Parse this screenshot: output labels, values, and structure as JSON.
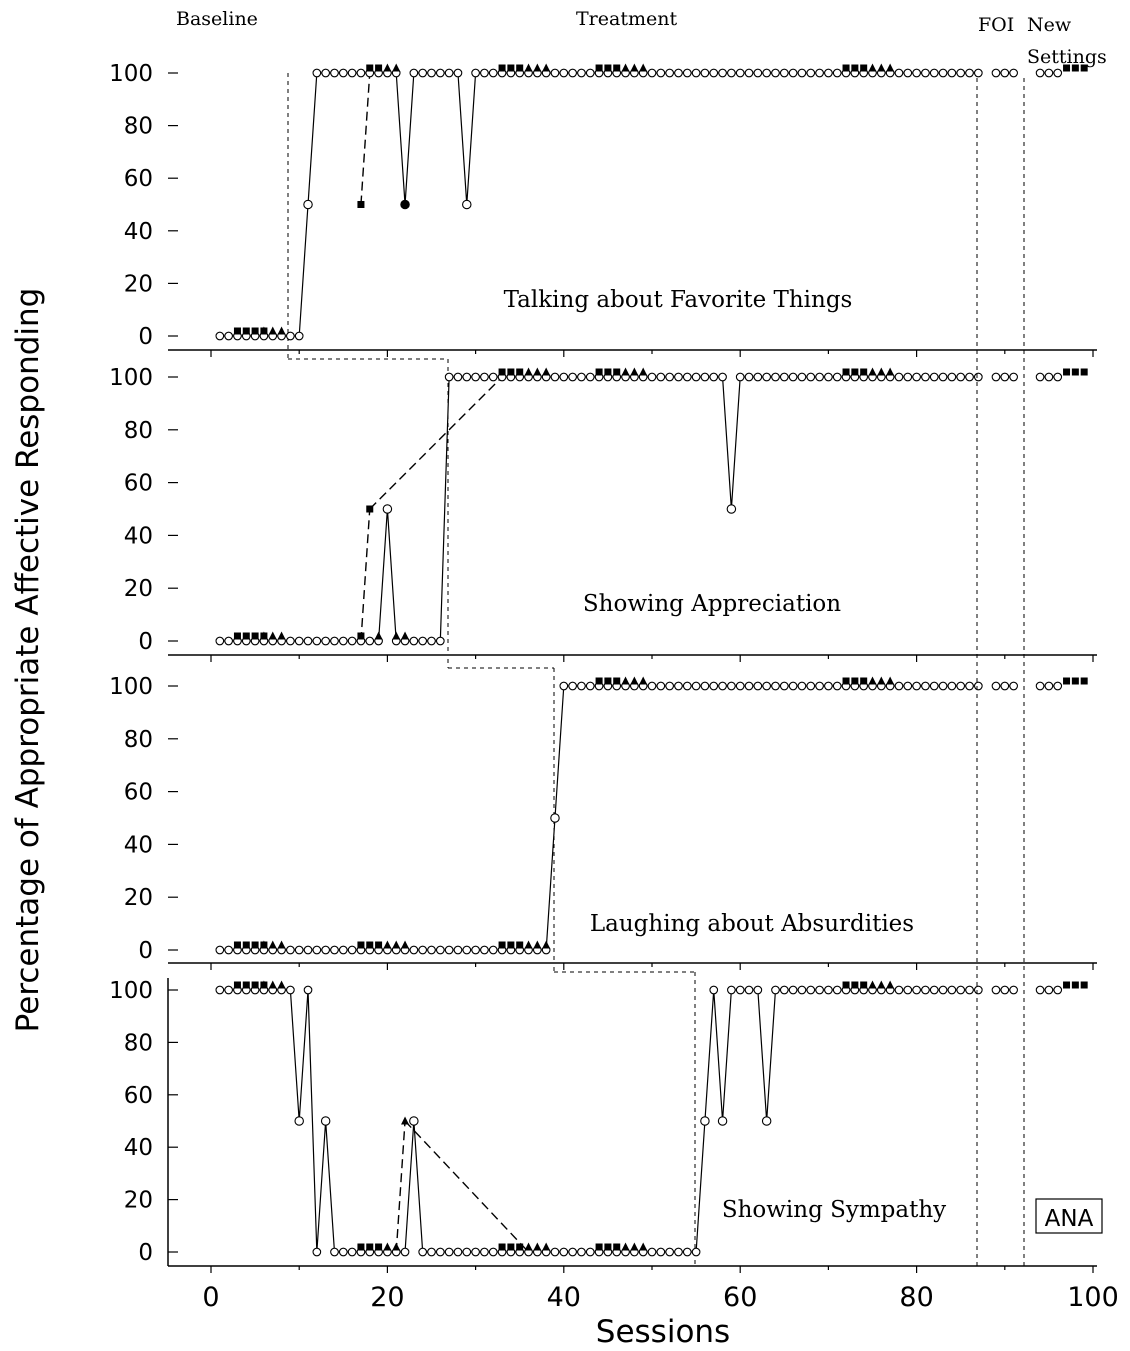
{
  "phase_labels": {
    "baseline": "Baseline",
    "treatment": "Treatment",
    "foi": "FOI",
    "new_settings_1": "New",
    "new_settings_2": "Settings"
  },
  "ylabel": "Percentage of Appropriate Affective Responding",
  "xlabel": "Sessions",
  "badge": "ANA",
  "x_ticks": [
    "0",
    "20",
    "40",
    "60",
    "80",
    "100"
  ],
  "y_ticks": [
    "0",
    "20",
    "40",
    "60",
    "80",
    "100"
  ],
  "chart_data": [
    {
      "type": "line",
      "title": "Talking about Favorite Things",
      "xlim": [
        0,
        100
      ],
      "ylim": [
        0,
        100
      ],
      "series": [
        {
          "marker": "open-circle",
          "x": [
            1,
            2,
            3,
            4,
            5,
            6,
            7,
            8,
            9,
            10,
            11,
            12,
            13,
            14,
            15,
            16,
            17,
            18,
            19,
            20,
            21,
            22,
            23,
            24,
            25,
            26,
            27,
            28,
            29,
            30,
            31,
            32,
            33,
            34,
            35,
            36,
            37,
            38,
            39,
            40,
            41,
            42,
            43,
            44,
            45,
            46,
            47,
            48,
            49,
            50,
            51,
            52,
            53,
            54,
            55,
            56,
            57,
            58,
            59,
            60,
            61,
            62,
            63,
            64,
            65,
            66,
            67,
            68,
            69,
            70,
            71,
            72,
            73,
            74,
            75,
            76,
            77,
            78,
            79,
            80,
            81,
            82,
            83,
            84,
            85,
            86,
            87,
            89,
            90,
            91,
            94,
            95,
            96
          ],
          "y": [
            0,
            0,
            0,
            0,
            0,
            0,
            0,
            0,
            0,
            0,
            50,
            100,
            100,
            100,
            100,
            100,
            100,
            100,
            100,
            100,
            100,
            50,
            100,
            100,
            100,
            100,
            100,
            100,
            50,
            100,
            100,
            100,
            100,
            100,
            100,
            100,
            100,
            100,
            100,
            100,
            100,
            100,
            100,
            100,
            100,
            100,
            100,
            100,
            100,
            100,
            100,
            100,
            100,
            100,
            100,
            100,
            100,
            100,
            100,
            100,
            100,
            100,
            100,
            100,
            100,
            100,
            100,
            100,
            100,
            100,
            100,
            100,
            100,
            100,
            100,
            100,
            100,
            100,
            100,
            100,
            100,
            100,
            100,
            100,
            100,
            100,
            100,
            100,
            100,
            100,
            100,
            100,
            100
          ]
        },
        {
          "marker": "filled-square",
          "x": [
            3,
            4,
            5,
            6,
            17,
            18,
            19,
            33,
            34,
            35,
            44,
            45,
            46,
            72,
            73,
            74,
            97,
            98,
            99
          ],
          "y": [
            0,
            0,
            0,
            0,
            50,
            100,
            100,
            100,
            100,
            100,
            100,
            100,
            100,
            100,
            100,
            100,
            100,
            100,
            100
          ]
        },
        {
          "marker": "filled-triangle",
          "x": [
            6,
            7,
            8,
            20,
            21,
            36,
            37,
            38,
            47,
            48,
            49,
            75,
            76,
            77
          ],
          "y": [
            0,
            0,
            0,
            100,
            100,
            100,
            100,
            100,
            100,
            100,
            100,
            100,
            100,
            100
          ]
        },
        {
          "marker": "filled-circle",
          "x": [
            22
          ],
          "y": [
            50
          ]
        }
      ]
    },
    {
      "type": "line",
      "title": "Showing Appreciation",
      "xlim": [
        0,
        100
      ],
      "ylim": [
        0,
        100
      ],
      "series": [
        {
          "marker": "open-circle",
          "x": [
            1,
            2,
            3,
            4,
            5,
            6,
            7,
            8,
            9,
            10,
            11,
            12,
            13,
            14,
            15,
            16,
            17,
            18,
            19,
            20,
            21,
            22,
            23,
            24,
            25,
            26,
            27,
            28,
            29,
            30,
            31,
            32,
            33,
            34,
            35,
            36,
            37,
            38,
            39,
            40,
            41,
            42,
            43,
            44,
            45,
            46,
            47,
            48,
            49,
            50,
            51,
            52,
            53,
            54,
            55,
            56,
            57,
            58,
            59,
            60,
            61,
            62,
            63,
            64,
            65,
            66,
            67,
            68,
            69,
            70,
            71,
            72,
            73,
            74,
            75,
            76,
            77,
            78,
            79,
            80,
            81,
            82,
            83,
            84,
            85,
            86,
            87,
            89,
            90,
            91,
            94,
            95,
            96
          ],
          "y": [
            0,
            0,
            0,
            0,
            0,
            0,
            0,
            0,
            0,
            0,
            0,
            0,
            0,
            0,
            0,
            0,
            0,
            0,
            0,
            50,
            0,
            0,
            0,
            0,
            0,
            0,
            100,
            100,
            100,
            100,
            100,
            100,
            100,
            100,
            100,
            100,
            100,
            100,
            100,
            100,
            100,
            100,
            100,
            100,
            100,
            100,
            100,
            100,
            100,
            100,
            100,
            100,
            100,
            100,
            100,
            100,
            100,
            100,
            50,
            100,
            100,
            100,
            100,
            100,
            100,
            100,
            100,
            100,
            100,
            100,
            100,
            100,
            100,
            100,
            100,
            100,
            100,
            100,
            100,
            100,
            100,
            100,
            100,
            100,
            100,
            100,
            100,
            100,
            100,
            100,
            100,
            100,
            100
          ]
        },
        {
          "marker": "filled-square",
          "x": [
            3,
            4,
            5,
            6,
            17,
            18,
            33,
            34,
            35,
            44,
            45,
            46,
            72,
            73,
            74,
            97,
            98,
            99
          ],
          "y": [
            0,
            0,
            0,
            0,
            0,
            50,
            100,
            100,
            100,
            100,
            100,
            100,
            100,
            100,
            100,
            100,
            100,
            100
          ]
        },
        {
          "marker": "filled-triangle",
          "x": [
            6,
            7,
            8,
            19,
            21,
            22,
            36,
            37,
            38,
            47,
            48,
            49,
            75,
            76,
            77
          ],
          "y": [
            0,
            0,
            0,
            0,
            0,
            0,
            100,
            100,
            100,
            100,
            100,
            100,
            100,
            100,
            100
          ]
        }
      ]
    },
    {
      "type": "line",
      "title": "Laughing about Absurdities",
      "xlim": [
        0,
        100
      ],
      "ylim": [
        0,
        100
      ],
      "series": [
        {
          "marker": "open-circle",
          "x": [
            1,
            2,
            3,
            4,
            5,
            6,
            7,
            8,
            9,
            10,
            11,
            12,
            13,
            14,
            15,
            16,
            17,
            18,
            19,
            20,
            21,
            22,
            23,
            24,
            25,
            26,
            27,
            28,
            29,
            30,
            31,
            32,
            33,
            34,
            35,
            36,
            37,
            38,
            39,
            40,
            41,
            42,
            43,
            44,
            45,
            46,
            47,
            48,
            49,
            50,
            51,
            52,
            53,
            54,
            55,
            56,
            57,
            58,
            59,
            60,
            61,
            62,
            63,
            64,
            65,
            66,
            67,
            68,
            69,
            70,
            71,
            72,
            73,
            74,
            75,
            76,
            77,
            78,
            79,
            80,
            81,
            82,
            83,
            84,
            85,
            86,
            87,
            89,
            90,
            91,
            94,
            95,
            96
          ],
          "y": [
            0,
            0,
            0,
            0,
            0,
            0,
            0,
            0,
            0,
            0,
            0,
            0,
            0,
            0,
            0,
            0,
            0,
            0,
            0,
            0,
            0,
            0,
            0,
            0,
            0,
            0,
            0,
            0,
            0,
            0,
            0,
            0,
            0,
            0,
            0,
            0,
            0,
            0,
            50,
            100,
            100,
            100,
            100,
            100,
            100,
            100,
            100,
            100,
            100,
            100,
            100,
            100,
            100,
            100,
            100,
            100,
            100,
            100,
            100,
            100,
            100,
            100,
            100,
            100,
            100,
            100,
            100,
            100,
            100,
            100,
            100,
            100,
            100,
            100,
            100,
            100,
            100,
            100,
            100,
            100,
            100,
            100,
            100,
            100,
            100,
            100,
            100,
            100,
            100,
            100,
            100,
            100,
            100
          ]
        },
        {
          "marker": "filled-square",
          "x": [
            3,
            4,
            5,
            6,
            17,
            18,
            19,
            33,
            34,
            35,
            44,
            45,
            46,
            72,
            73,
            74,
            97,
            98,
            99
          ],
          "y": [
            0,
            0,
            0,
            0,
            0,
            0,
            0,
            0,
            0,
            0,
            100,
            100,
            100,
            100,
            100,
            100,
            100,
            100,
            100
          ]
        },
        {
          "marker": "filled-triangle",
          "x": [
            6,
            7,
            8,
            20,
            21,
            22,
            36,
            37,
            38,
            47,
            48,
            49,
            75,
            76,
            77
          ],
          "y": [
            0,
            0,
            0,
            0,
            0,
            0,
            0,
            0,
            0,
            100,
            100,
            100,
            100,
            100,
            100
          ]
        }
      ]
    },
    {
      "type": "line",
      "title": "Showing Sympathy",
      "xlim": [
        0,
        100
      ],
      "ylim": [
        0,
        100
      ],
      "series": [
        {
          "marker": "open-circle",
          "x": [
            1,
            2,
            3,
            4,
            5,
            6,
            7,
            8,
            9,
            10,
            11,
            12,
            13,
            14,
            15,
            16,
            17,
            18,
            19,
            20,
            21,
            22,
            23,
            24,
            25,
            26,
            27,
            28,
            29,
            30,
            31,
            32,
            33,
            34,
            35,
            36,
            37,
            38,
            39,
            40,
            41,
            42,
            43,
            44,
            45,
            46,
            47,
            48,
            49,
            50,
            51,
            52,
            53,
            54,
            55,
            56,
            57,
            58,
            59,
            60,
            61,
            62,
            63,
            64,
            65,
            66,
            67,
            68,
            69,
            70,
            71,
            72,
            73,
            74,
            75,
            76,
            77,
            78,
            79,
            80,
            81,
            82,
            83,
            84,
            85,
            86,
            87,
            89,
            90,
            91,
            94,
            95,
            96
          ],
          "y": [
            100,
            100,
            100,
            100,
            100,
            100,
            100,
            100,
            100,
            50,
            100,
            0,
            50,
            0,
            0,
            0,
            0,
            0,
            0,
            0,
            0,
            0,
            50,
            0,
            0,
            0,
            0,
            0,
            0,
            0,
            0,
            0,
            0,
            0,
            0,
            0,
            0,
            0,
            0,
            0,
            0,
            0,
            0,
            0,
            0,
            0,
            0,
            0,
            0,
            0,
            0,
            0,
            0,
            0,
            0,
            50,
            100,
            50,
            100,
            100,
            100,
            100,
            50,
            100,
            100,
            100,
            100,
            100,
            100,
            100,
            100,
            100,
            100,
            100,
            100,
            100,
            100,
            100,
            100,
            100,
            100,
            100,
            100,
            100,
            100,
            100,
            100,
            100,
            100,
            100,
            100,
            100,
            100
          ]
        },
        {
          "marker": "filled-square",
          "x": [
            3,
            4,
            5,
            6,
            17,
            18,
            19,
            33,
            34,
            35,
            44,
            45,
            46,
            72,
            73,
            74,
            97,
            98,
            99
          ],
          "y": [
            100,
            100,
            100,
            100,
            0,
            0,
            0,
            0,
            0,
            0,
            0,
            0,
            0,
            100,
            100,
            100,
            100,
            100,
            100
          ]
        },
        {
          "marker": "filled-triangle",
          "x": [
            6,
            7,
            8,
            20,
            21,
            22,
            36,
            37,
            38,
            47,
            48,
            49,
            75,
            76,
            77
          ],
          "y": [
            100,
            100,
            100,
            0,
            0,
            50,
            0,
            0,
            0,
            0,
            0,
            0,
            100,
            100,
            100
          ]
        }
      ]
    }
  ]
}
